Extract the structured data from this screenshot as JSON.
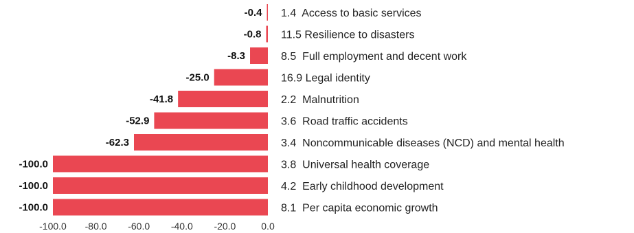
{
  "chart_data": {
    "type": "bar",
    "orientation": "horizontal",
    "categories": [
      "1.4  Access to basic services",
      "11.5 Resilience to disasters",
      "8.5  Full employment and decent work",
      "16.9 Legal identity",
      "2.2  Malnutrition",
      "3.6  Road traffic accidents",
      "3.4  Noncommunicable diseases (NCD) and mental health",
      "3.8  Universal health coverage",
      "4.2  Early childhood development",
      "8.1  Per capita economic growth"
    ],
    "values": [
      -0.4,
      -0.8,
      -8.3,
      -25.0,
      -41.8,
      -52.9,
      -62.3,
      -100.0,
      -100.0,
      -100.0
    ],
    "value_labels": [
      "-0.4",
      "-0.8",
      "-8.3",
      "-25.0",
      "-41.8",
      "-52.9",
      "-62.3",
      "-100.0",
      "-100.0",
      "-100.0"
    ],
    "xlim": [
      -100,
      0
    ],
    "x_ticks": [
      -100,
      -80,
      -60,
      -40,
      -20,
      0
    ],
    "x_tick_labels": [
      "-100.0",
      "-80.0",
      "-60.0",
      "-40.0",
      "-20.0",
      "0.0"
    ],
    "bar_color": "#ea4752",
    "title": "",
    "xlabel": "",
    "ylabel": "",
    "grid": false,
    "legend": "none"
  }
}
